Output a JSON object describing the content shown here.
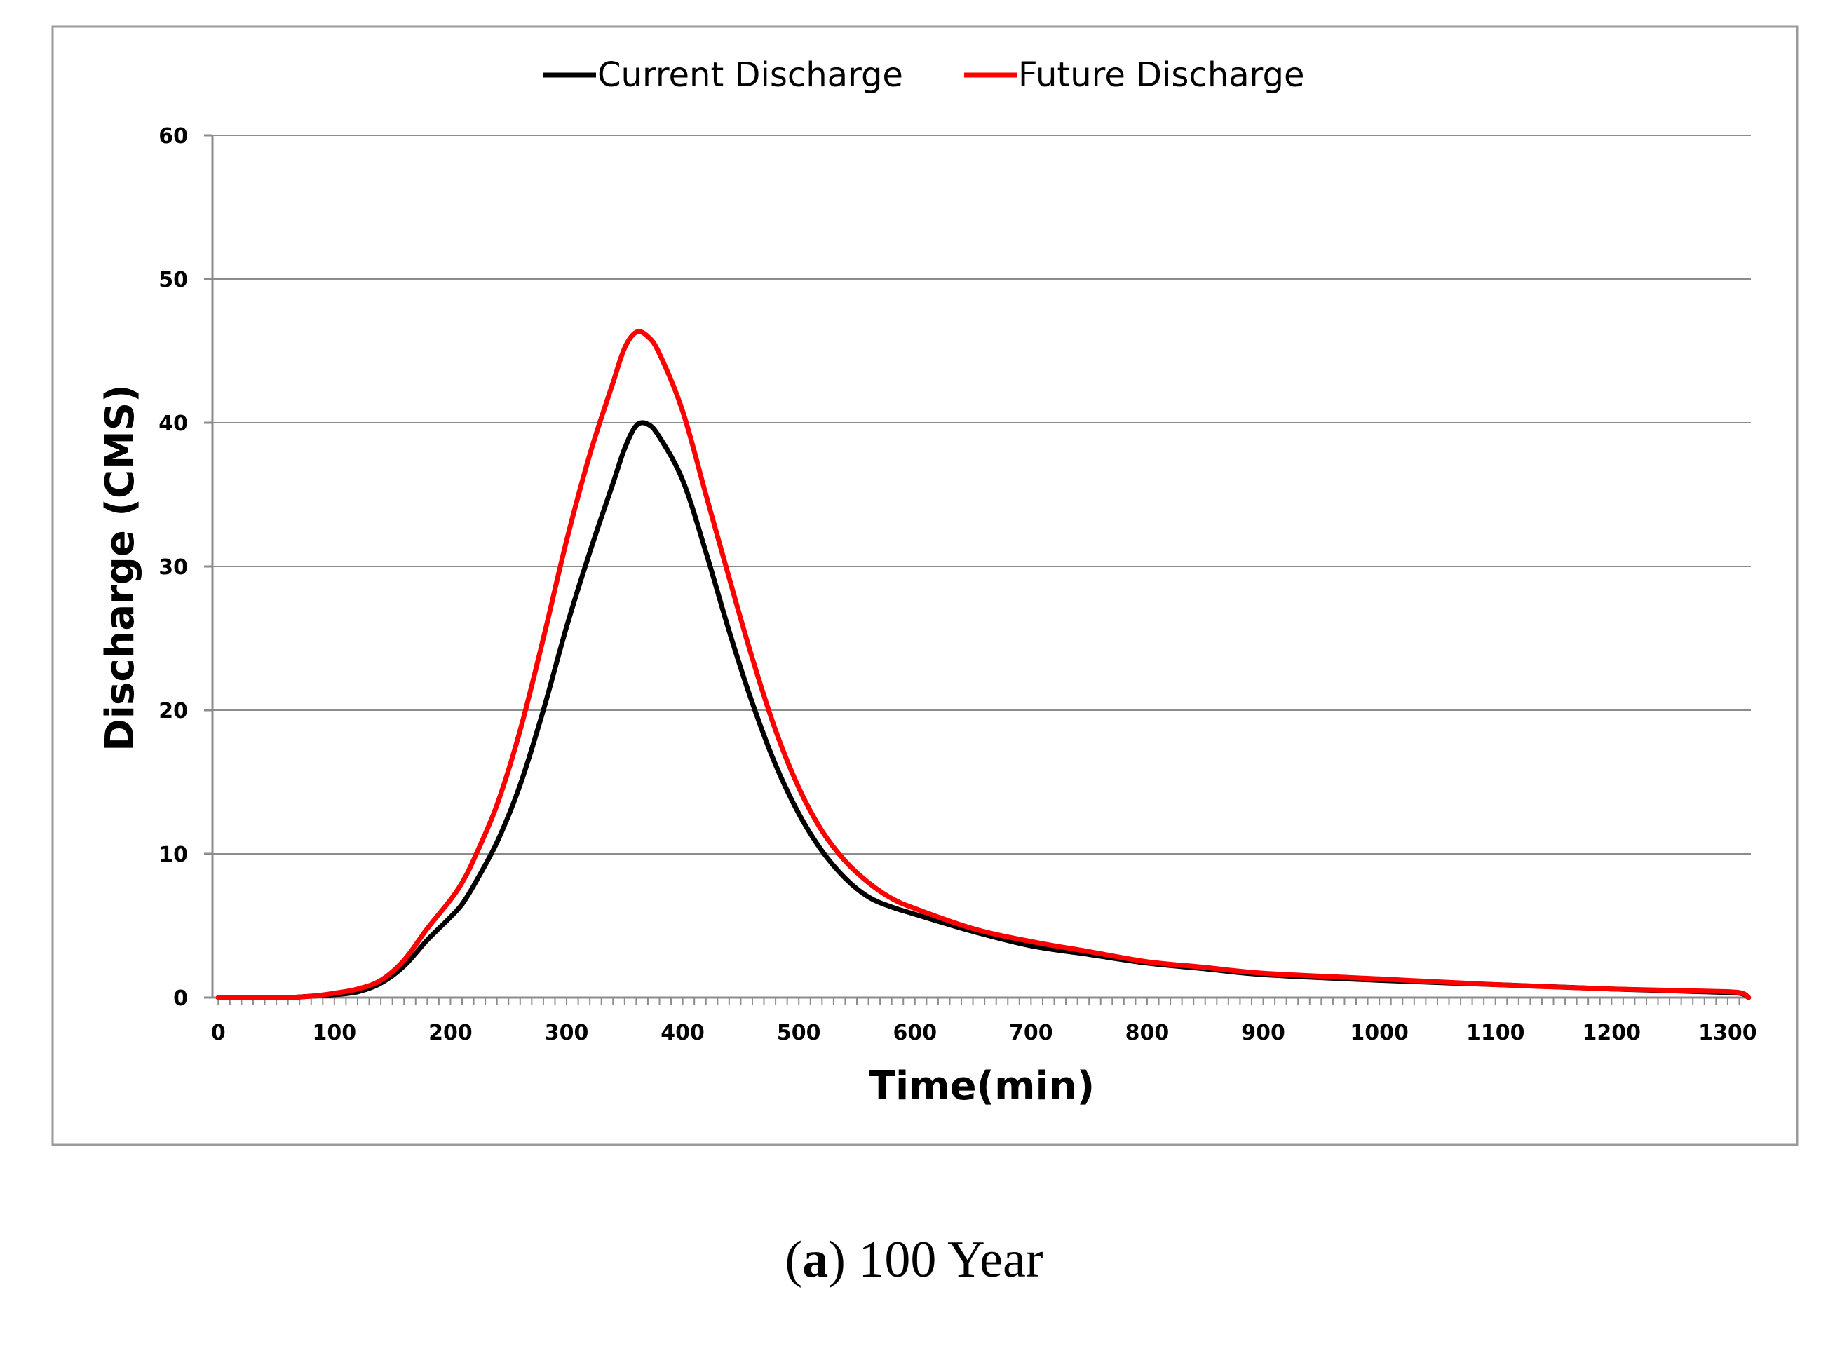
{
  "chart_data": {
    "type": "line",
    "title": "",
    "xlabel": "Time(min)",
    "ylabel": "Discharge (CMS)",
    "xlim": [
      -5,
      1320
    ],
    "ylim": [
      0,
      60
    ],
    "xticks": [
      "0",
      "100",
      "200",
      "300",
      "400",
      "500",
      "600",
      "700",
      "800",
      "900",
      "1000",
      "1100",
      "1200",
      "1300"
    ],
    "yticks": [
      "0",
      "10",
      "20",
      "30",
      "40",
      "50",
      "60"
    ],
    "grid": "horizontal",
    "legend_position": "top-center",
    "series": [
      {
        "name": "Current Discharge",
        "color": "#000000",
        "x": [
          0,
          20,
          40,
          60,
          80,
          100,
          120,
          140,
          160,
          180,
          200,
          210,
          220,
          240,
          260,
          280,
          300,
          320,
          340,
          350,
          360,
          370,
          380,
          400,
          420,
          440,
          460,
          480,
          500,
          520,
          540,
          560,
          580,
          600,
          650,
          700,
          750,
          800,
          850,
          900,
          1000,
          1100,
          1200,
          1280,
          1310,
          1318
        ],
        "y": [
          0,
          0,
          0,
          0,
          0.1,
          0.2,
          0.4,
          1.0,
          2.2,
          4.0,
          5.6,
          6.5,
          7.8,
          10.8,
          14.8,
          20.0,
          25.8,
          31.0,
          35.8,
          38.2,
          39.8,
          39.9,
          39.0,
          36.0,
          31.0,
          25.5,
          20.5,
          16.2,
          12.8,
          10.2,
          8.3,
          7.0,
          6.3,
          5.8,
          4.6,
          3.6,
          3.0,
          2.4,
          2.0,
          1.6,
          1.2,
          0.9,
          0.6,
          0.4,
          0.3,
          0
        ]
      },
      {
        "name": "Future Discharge",
        "color": "#ff0000",
        "x": [
          0,
          20,
          40,
          60,
          80,
          100,
          120,
          140,
          160,
          180,
          200,
          210,
          220,
          240,
          260,
          280,
          300,
          320,
          340,
          350,
          360,
          370,
          380,
          400,
          420,
          440,
          460,
          480,
          500,
          520,
          540,
          560,
          580,
          600,
          650,
          700,
          750,
          800,
          850,
          900,
          1000,
          1100,
          1200,
          1280,
          1310,
          1318
        ],
        "y": [
          0,
          0,
          0,
          0,
          0.1,
          0.3,
          0.6,
          1.2,
          2.6,
          4.8,
          6.8,
          8.0,
          9.6,
          13.4,
          18.6,
          25.0,
          31.8,
          37.8,
          42.8,
          45.2,
          46.3,
          46.0,
          44.8,
          40.8,
          35.0,
          29.2,
          23.6,
          18.6,
          14.6,
          11.6,
          9.5,
          8.0,
          6.9,
          6.2,
          4.8,
          3.9,
          3.2,
          2.5,
          2.1,
          1.7,
          1.3,
          0.9,
          0.6,
          0.45,
          0.35,
          0
        ]
      }
    ]
  },
  "caption": {
    "label": "a",
    "text": "100 Year"
  }
}
